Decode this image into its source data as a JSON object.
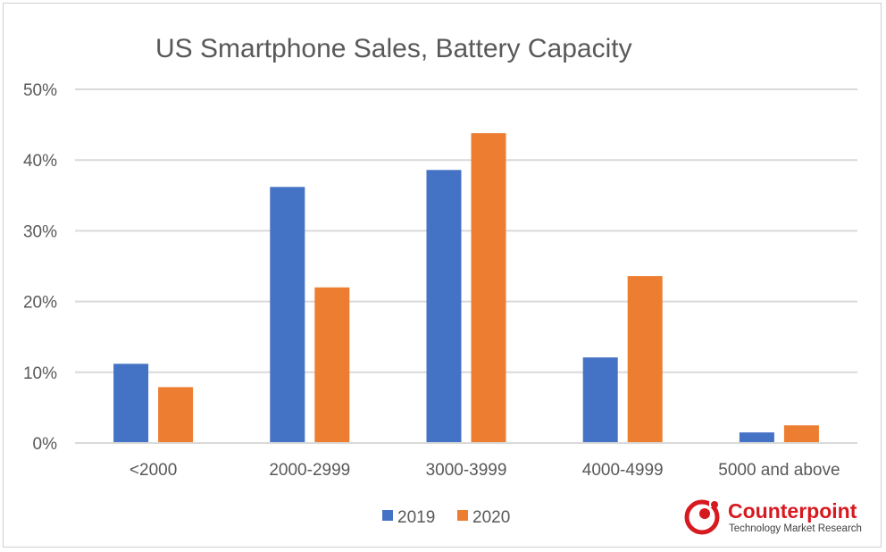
{
  "chart_data": {
    "type": "bar",
    "title": "US Smartphone Sales, Battery Capacity",
    "categories": [
      "<2000",
      "2000-2999",
      "3000-3999",
      "4000-4999",
      "5000 and above"
    ],
    "series": [
      {
        "name": "2019",
        "color": "#4472c4",
        "values": [
          11.2,
          36.2,
          38.6,
          12.1,
          1.5
        ]
      },
      {
        "name": "2020",
        "color": "#ed7d31",
        "values": [
          7.9,
          22.0,
          43.8,
          23.6,
          2.5
        ]
      }
    ],
    "ylim": [
      0,
      50
    ],
    "yticks": [
      0,
      10,
      20,
      30,
      40,
      50
    ],
    "ytick_labels": [
      "0%",
      "10%",
      "20%",
      "30%",
      "40%",
      "50%"
    ],
    "xlabel": "",
    "ylabel": "",
    "grid": true,
    "legend_position": "bottom"
  },
  "branding": {
    "name": "Counterpoint",
    "tagline": "Technology Market Research",
    "color": "#d71920"
  }
}
